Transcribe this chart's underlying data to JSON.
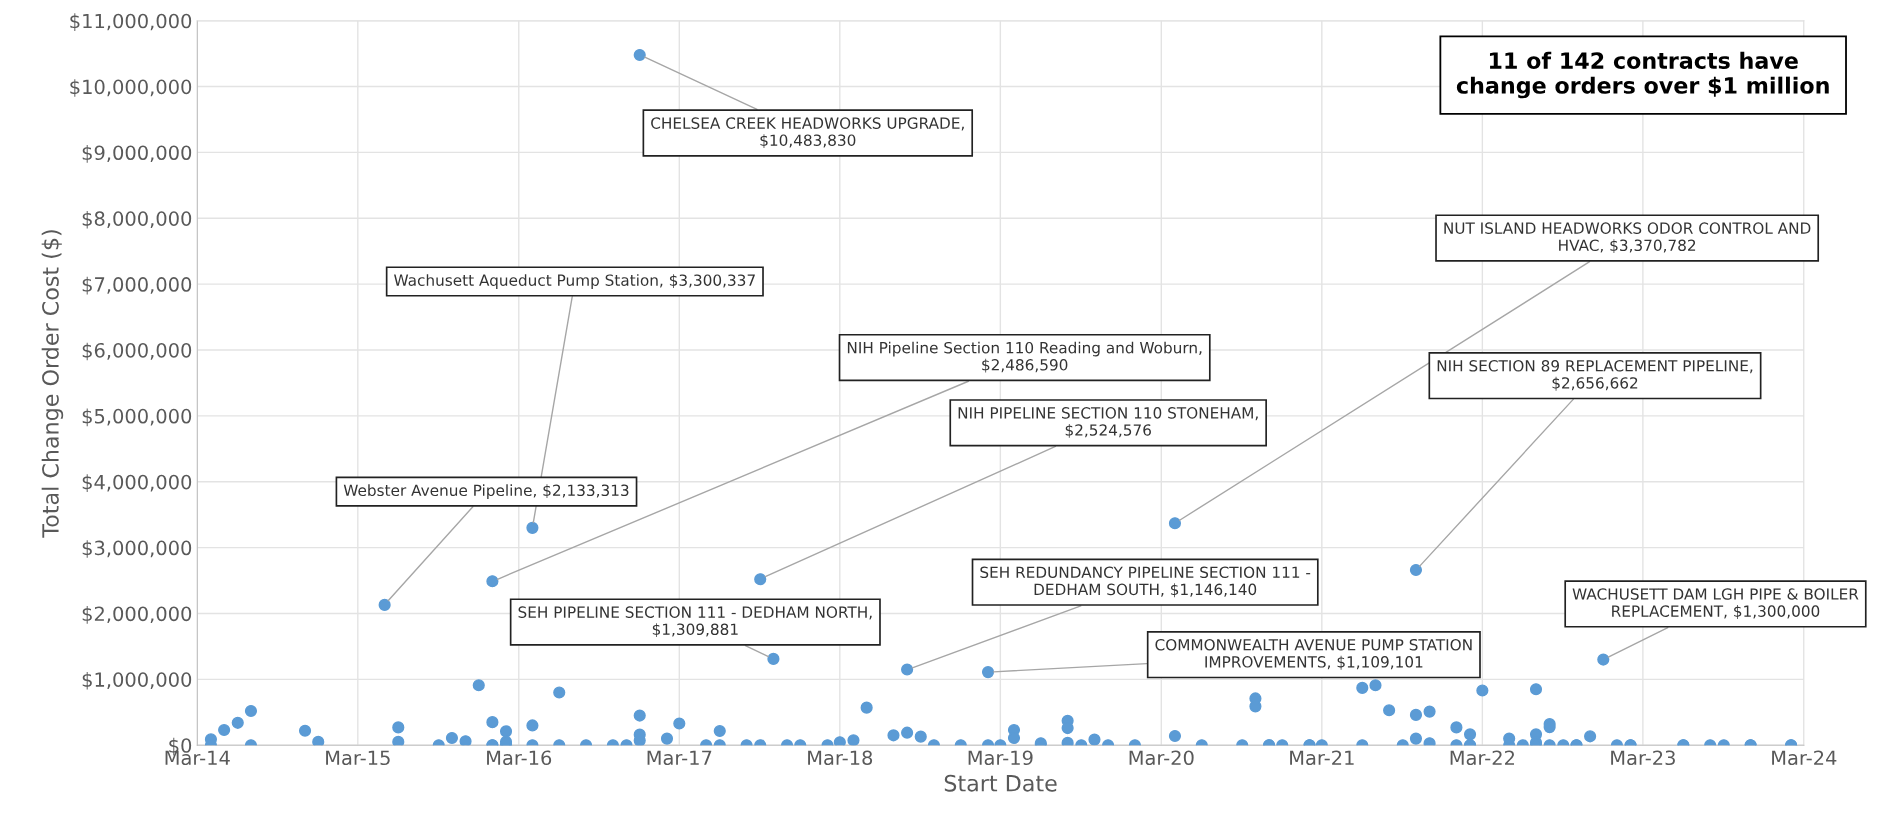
{
  "chart_data": {
    "type": "scatter",
    "xlabel": "Start Date",
    "ylabel": "Total Change Order Cost ($)",
    "xlim": [
      "2014-03-01",
      "2024-03-01"
    ],
    "xticks": [
      {
        "value": "2014-03-01",
        "label": "Mar-14"
      },
      {
        "value": "2015-03-01",
        "label": "Mar-15"
      },
      {
        "value": "2016-03-01",
        "label": "Mar-16"
      },
      {
        "value": "2017-03-01",
        "label": "Mar-17"
      },
      {
        "value": "2018-03-01",
        "label": "Mar-18"
      },
      {
        "value": "2019-03-01",
        "label": "Mar-19"
      },
      {
        "value": "2020-03-01",
        "label": "Mar-20"
      },
      {
        "value": "2021-03-01",
        "label": "Mar-21"
      },
      {
        "value": "2022-03-01",
        "label": "Mar-22"
      },
      {
        "value": "2023-03-01",
        "label": "Mar-23"
      },
      {
        "value": "2024-03-01",
        "label": "Mar-24"
      }
    ],
    "ylim": [
      0,
      11000000
    ],
    "yticks": [
      {
        "value": 0,
        "label": "$0"
      },
      {
        "value": 1000000,
        "label": "$1,000,000"
      },
      {
        "value": 2000000,
        "label": "$2,000,000"
      },
      {
        "value": 3000000,
        "label": "$3,000,000"
      },
      {
        "value": 4000000,
        "label": "$4,000,000"
      },
      {
        "value": 5000000,
        "label": "$5,000,000"
      },
      {
        "value": 6000000,
        "label": "$6,000,000"
      },
      {
        "value": 7000000,
        "label": "$7,000,000"
      },
      {
        "value": 8000000,
        "label": "$8,000,000"
      },
      {
        "value": 9000000,
        "label": "$9,000,000"
      },
      {
        "value": 10000000,
        "label": "$10,000,000"
      },
      {
        "value": 11000000,
        "label": "$11,000,000"
      }
    ],
    "grid": true,
    "marker": "circle",
    "series": [
      {
        "color": "#5b9bd5",
        "x": [
          "2014-04",
          "2014-04",
          "2014-05",
          "2014-06",
          "2014-07",
          "2014-07",
          "2014-11",
          "2014-12",
          "2015-06",
          "2015-06",
          "2015-09",
          "2015-10",
          "2015-11",
          "2015-12",
          "2016-01",
          "2016-01",
          "2016-02",
          "2016-02",
          "2016-01",
          "2016-02",
          "2016-02",
          "2016-04",
          "2016-04",
          "2016-06",
          "2016-06",
          "2016-08",
          "2016-10",
          "2016-11",
          "2016-12",
          "2016-12",
          "2016-12",
          "2017-02",
          "2017-03",
          "2017-05",
          "2015-05",
          "2016-04",
          "2016-01",
          "2016-12",
          "2017-09",
          "2017-10",
          "2018-08",
          "2019-02",
          "2020-04",
          "2021-10",
          "2022-12",
          "2017-06",
          "2017-06",
          "2017-08",
          "2017-09",
          "2017-11",
          "2017-12",
          "2018-02",
          "2018-03",
          "2018-04",
          "2018-05",
          "2018-07",
          "2018-08",
          "2018-09",
          "2018-10",
          "2018-12",
          "2019-02",
          "2019-03",
          "2019-04",
          "2019-04",
          "2019-06",
          "2019-06",
          "2019-08",
          "2019-08",
          "2019-08",
          "2019-09",
          "2019-10",
          "2019-11",
          "2020-01",
          "2020-04",
          "2020-06",
          "2020-09",
          "2020-10",
          "2020-10",
          "2020-11",
          "2020-11",
          "2020-12",
          "2021-02",
          "2021-02",
          "2021-03",
          "2021-06",
          "2021-06",
          "2021-07",
          "2021-08",
          "2021-09",
          "2021-10",
          "2021-10",
          "2021-11",
          "2021-11",
          "2022-01",
          "2022-01",
          "2022-02",
          "2022-02",
          "2022-02",
          "2022-03",
          "2022-05",
          "2022-05",
          "2022-06",
          "2022-07",
          "2022-07",
          "2022-07",
          "2022-07",
          "2022-08",
          "2022-08",
          "2022-08",
          "2022-09",
          "2022-10",
          "2022-10",
          "2022-11",
          "2023-01",
          "2023-02",
          "2023-02",
          "2023-06",
          "2023-06",
          "2023-08",
          "2023-09",
          "2023-11",
          "2023-11",
          "2024-02",
          "2024-02"
        ],
        "values": [
          90000,
          0,
          230000,
          340000,
          520000,
          0,
          220000,
          50000,
          270000,
          50000,
          0,
          110000,
          60000,
          910000,
          0,
          350000,
          0,
          0,
          0,
          210000,
          50000,
          300000,
          0,
          0,
          800000,
          0,
          0,
          0,
          160000,
          450000,
          70000,
          100000,
          330000,
          0,
          2130000,
          3300000,
          2490000,
          10480000,
          2520000,
          1310000,
          1150000,
          1110000,
          3370000,
          2660000,
          1300000,
          0,
          215000,
          0,
          0,
          0,
          0,
          0,
          45000,
          75000,
          570000,
          150000,
          190000,
          130000,
          0,
          0,
          0,
          0,
          230000,
          110000,
          0,
          30000,
          370000,
          260000,
          35000,
          0,
          85000,
          0,
          0,
          140000,
          0,
          0,
          590000,
          710000,
          0,
          0,
          0,
          0,
          0,
          0,
          870000,
          0,
          910000,
          530000,
          0,
          100000,
          460000,
          510000,
          30000,
          270000,
          0,
          0,
          165000,
          0,
          830000,
          0,
          100000,
          0,
          850000,
          165000,
          40000,
          0,
          320000,
          275000,
          0,
          0,
          0,
          0,
          135000,
          0,
          0,
          0,
          0,
          0,
          0,
          0,
          0,
          0,
          0,
          0
        ]
      }
    ],
    "annotations": [
      {
        "text": "CHELSEA CREEK HEADWORKS UPGRADE,\n$10,483,830",
        "x": "2016-12",
        "y": 10483830
      },
      {
        "text": "Wachusett Aqueduct Pump Station, $3,300,337",
        "x": "2016-04",
        "y": 3300337
      },
      {
        "text": "NIH Pipeline Section 110 Reading and Woburn,\n$2,486,590",
        "x": "2016-01",
        "y": 2486590
      },
      {
        "text": "NIH PIPELINE SECTION 110 STONEHAM,\n$2,524,576",
        "x": "2017-09",
        "y": 2524576
      },
      {
        "text": "Webster Avenue Pipeline, $2,133,313",
        "x": "2015-05",
        "y": 2133313
      },
      {
        "text": "SEH PIPELINE SECTION 111 - DEDHAM NORTH,\n$1,309,881",
        "x": "2017-10",
        "y": 1309881
      },
      {
        "text": "SEH REDUNDANCY PIPELINE SECTION 111 -\nDEDHAM SOUTH, $1,146,140",
        "x": "2018-08",
        "y": 1146140
      },
      {
        "text": "COMMONWEALTH AVENUE PUMP STATION\nIMPROVEMENTS, $1,109,101",
        "x": "2019-02",
        "y": 1109101
      },
      {
        "text": "NUT ISLAND HEADWORKS ODOR CONTROL AND\nHVAC, $3,370,782",
        "x": "2020-04",
        "y": 3370782
      },
      {
        "text": "NIH SECTION 89 REPLACEMENT PIPELINE,\n$2,656,662",
        "x": "2021-10",
        "y": 2656662
      },
      {
        "text": "WACHUSETT DAM LGH PIPE & BOILER\nREPLACEMENT, $1,300,000",
        "x": "2022-12",
        "y": 1300000
      },
      "11 of 142 contracts have\nchange orders over $1 million"
    ]
  }
}
